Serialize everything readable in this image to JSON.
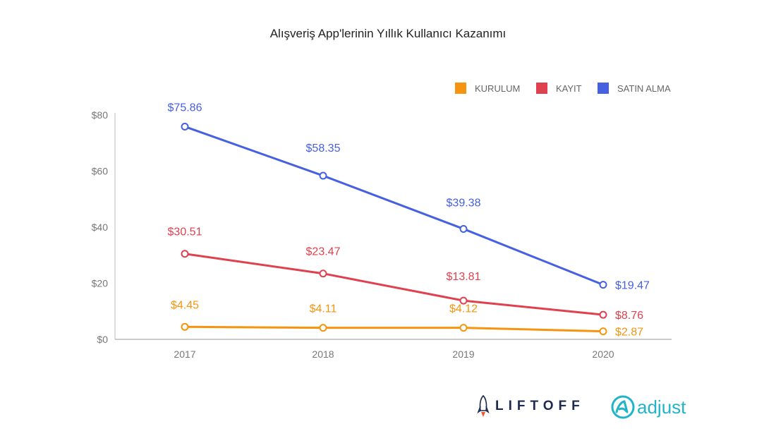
{
  "chart_data": {
    "type": "line",
    "title": "Alışveriş App'lerinin Yıllık Kullanıcı Kazanımı",
    "xlabel": "",
    "ylabel": "",
    "categories": [
      "2017",
      "2018",
      "2019",
      "2020"
    ],
    "ylim": [
      0,
      80
    ],
    "yticks": [
      0,
      20,
      40,
      60,
      80
    ],
    "ytick_labels": [
      "$0",
      "$20",
      "$40",
      "$60",
      "$80"
    ],
    "legend_position": "top-right",
    "grid": false,
    "series": [
      {
        "name": "KURULUM",
        "color": "#f7940f",
        "values": [
          4.45,
          4.11,
          4.12,
          2.87
        ],
        "labels": [
          "$4.45",
          "$4.11",
          "$4.12",
          "$2.87"
        ]
      },
      {
        "name": "KAYIT",
        "color": "#e0414f",
        "values": [
          30.51,
          23.47,
          13.81,
          8.76
        ],
        "labels": [
          "$30.51",
          "$23.47",
          "$13.81",
          "$8.76"
        ]
      },
      {
        "name": "SATIN ALMA",
        "color": "#4560e0",
        "values": [
          75.86,
          58.35,
          39.38,
          19.47
        ],
        "labels": [
          "$75.86",
          "$58.35",
          "$39.38",
          "$19.47"
        ]
      }
    ]
  },
  "logos": {
    "liftoff": "LIFTOFF",
    "adjust": "adjust"
  }
}
